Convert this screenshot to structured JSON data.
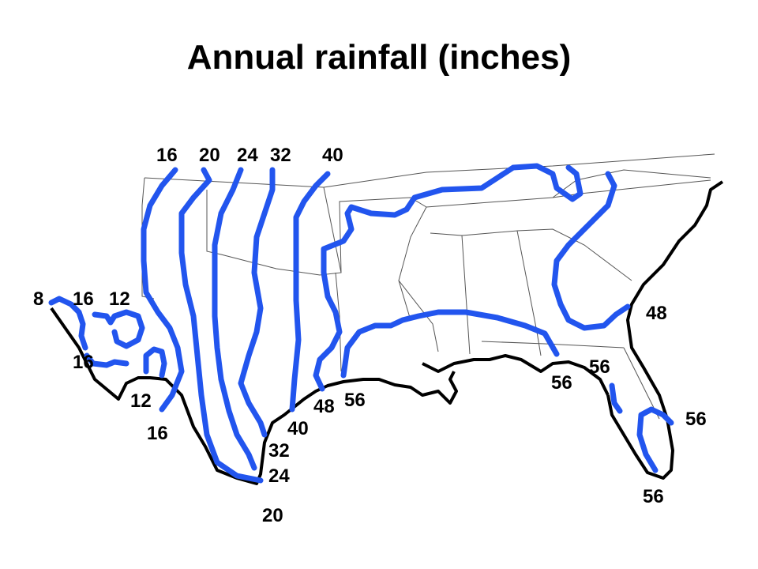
{
  "title": "Annual rainfall (inches)",
  "colors": {
    "isohyet": "#2255ee",
    "coast": "#000000",
    "border": "#555555",
    "text": "#000000"
  },
  "labels": {
    "top_16": "16",
    "top_20": "20",
    "top_24": "24",
    "top_32": "32",
    "top_40": "40",
    "w_8": "8",
    "w_16": "16",
    "w_12": "12",
    "sw_16a": "16",
    "sw_12": "12",
    "sw_16b": "16",
    "tx_20": "20",
    "tx_24": "24",
    "tx_32": "32",
    "tx_40": "40",
    "tx_48": "48",
    "tx_56": "56",
    "gulf_56a": "56",
    "gulf_56b": "56",
    "fl_48": "48",
    "fl_56a": "56",
    "fl_56b": "56"
  }
}
